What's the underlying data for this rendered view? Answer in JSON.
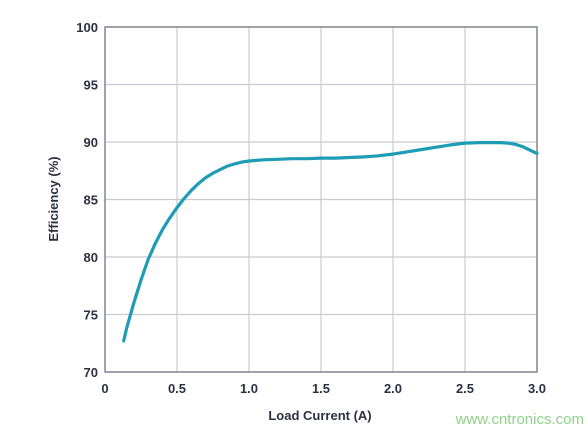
{
  "chart_data": {
    "type": "line",
    "title": "",
    "xlabel": "Load Current (A)",
    "ylabel": "Efficiency (%)",
    "xlim": [
      0,
      3.0
    ],
    "ylim": [
      70,
      100
    ],
    "x_ticks": [
      "0",
      "0.5",
      "1.0",
      "1.5",
      "2.0",
      "2.5",
      "3.0"
    ],
    "x_tick_values": [
      0,
      0.5,
      1.0,
      1.5,
      2.0,
      2.5,
      3.0
    ],
    "y_ticks": [
      "70",
      "75",
      "80",
      "85",
      "90",
      "95",
      "100"
    ],
    "y_tick_values": [
      70,
      75,
      80,
      85,
      90,
      95,
      100
    ],
    "grid": true,
    "legend": "none",
    "series": [
      {
        "color": "#1e9bb5",
        "x": [
          0.13,
          0.15,
          0.2,
          0.25,
          0.3,
          0.35,
          0.4,
          0.45,
          0.5,
          0.55,
          0.6,
          0.65,
          0.7,
          0.75,
          0.8,
          0.85,
          0.9,
          0.95,
          1.0,
          1.05,
          1.1,
          1.2,
          1.3,
          1.4,
          1.5,
          1.6,
          1.7,
          1.8,
          1.9,
          2.0,
          2.1,
          2.2,
          2.3,
          2.4,
          2.5,
          2.6,
          2.7,
          2.75,
          2.8,
          2.85,
          2.9,
          2.95,
          3.0
        ],
        "y": [
          72.7,
          73.8,
          76.0,
          78.0,
          79.8,
          81.2,
          82.4,
          83.4,
          84.3,
          85.1,
          85.8,
          86.4,
          86.9,
          87.3,
          87.6,
          87.9,
          88.1,
          88.25,
          88.35,
          88.4,
          88.45,
          88.5,
          88.55,
          88.55,
          88.6,
          88.6,
          88.65,
          88.7,
          88.8,
          88.95,
          89.15,
          89.35,
          89.55,
          89.75,
          89.9,
          89.95,
          89.95,
          89.95,
          89.9,
          89.8,
          89.6,
          89.3,
          89.0
        ]
      }
    ]
  },
  "watermark": "www.cntronics.com"
}
